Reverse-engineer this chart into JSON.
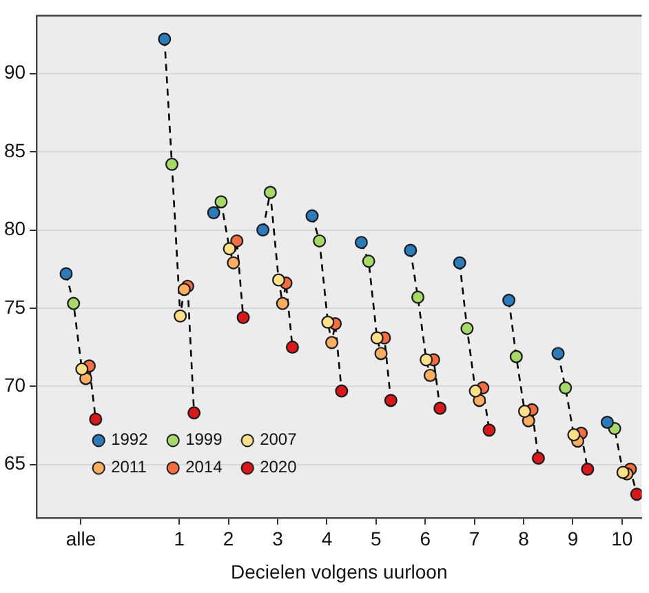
{
  "chart_data": {
    "type": "scatter",
    "xlabel": "Decielen volgens uurloon",
    "xlim": [
      -1.9,
      10.4
    ],
    "xticks": [
      {
        "value": -1,
        "label": "alle"
      },
      1,
      2,
      3,
      4,
      5,
      6,
      7,
      8,
      9,
      10
    ],
    "ylim": [
      61.6,
      93.7
    ],
    "yticks": [
      65,
      70,
      75,
      80,
      85,
      90
    ],
    "grid": "y",
    "legend": "bottom left",
    "marker": "circle",
    "series": [
      {
        "type": "line",
        "color": "#000000",
        "line_style": "dashed",
        "marker": "none",
        "x": [
          -1.3,
          -1.15,
          -0.98,
          -0.9,
          -0.83,
          -0.7
        ],
        "values": [
          77.2,
          75.3,
          71.1,
          70.5,
          71.3,
          67.9
        ]
      },
      {
        "type": "line",
        "color": "#000000",
        "line_style": "dashed",
        "marker": "none",
        "x": [
          0.7,
          0.85,
          1.02,
          1.1,
          1.17,
          1.3
        ],
        "values": [
          92.2,
          84.2,
          74.5,
          76.2,
          76.4,
          68.3
        ]
      },
      {
        "type": "line",
        "color": "#000000",
        "line_style": "dashed",
        "marker": "none",
        "x": [
          1.7,
          1.85,
          2.02,
          2.1,
          2.17,
          2.3
        ],
        "values": [
          81.1,
          81.8,
          78.8,
          77.9,
          79.3,
          74.4
        ]
      },
      {
        "type": "line",
        "color": "#000000",
        "line_style": "dashed",
        "marker": "none",
        "x": [
          2.7,
          2.85,
          3.02,
          3.1,
          3.17,
          3.3
        ],
        "values": [
          80.0,
          82.4,
          76.8,
          75.3,
          76.6,
          72.5
        ]
      },
      {
        "type": "line",
        "color": "#000000",
        "line_style": "dashed",
        "marker": "none",
        "x": [
          3.7,
          3.85,
          4.02,
          4.1,
          4.17,
          4.3
        ],
        "values": [
          80.9,
          79.3,
          74.1,
          72.8,
          74.0,
          69.7
        ]
      },
      {
        "type": "line",
        "color": "#000000",
        "line_style": "dashed",
        "marker": "none",
        "x": [
          4.7,
          4.85,
          5.02,
          5.1,
          5.17,
          5.3
        ],
        "values": [
          79.2,
          78.0,
          73.1,
          72.1,
          73.1,
          69.1
        ]
      },
      {
        "type": "line",
        "color": "#000000",
        "line_style": "dashed",
        "marker": "none",
        "x": [
          5.7,
          5.85,
          6.02,
          6.1,
          6.17,
          6.3
        ],
        "values": [
          78.7,
          75.7,
          71.7,
          70.7,
          71.7,
          68.6
        ]
      },
      {
        "type": "line",
        "color": "#000000",
        "line_style": "dashed",
        "marker": "none",
        "x": [
          6.7,
          6.85,
          7.02,
          7.1,
          7.17,
          7.3
        ],
        "values": [
          77.9,
          73.7,
          69.7,
          69.1,
          69.9,
          67.2
        ]
      },
      {
        "type": "line",
        "color": "#000000",
        "line_style": "dashed",
        "marker": "none",
        "x": [
          7.7,
          7.85,
          8.02,
          8.1,
          8.17,
          8.3
        ],
        "values": [
          75.5,
          71.9,
          68.4,
          67.8,
          68.5,
          65.4
        ]
      },
      {
        "type": "line",
        "color": "#000000",
        "line_style": "dashed",
        "marker": "none",
        "x": [
          8.7,
          8.85,
          9.02,
          9.1,
          9.17,
          9.3
        ],
        "values": [
          72.1,
          69.9,
          66.9,
          66.5,
          67.0,
          64.7
        ]
      },
      {
        "type": "line",
        "color": "#000000",
        "line_style": "dashed",
        "marker": "none",
        "x": [
          9.7,
          9.85,
          10.02,
          10.1,
          10.17,
          10.3
        ],
        "values": [
          67.7,
          67.3,
          64.5,
          64.4,
          64.7,
          63.1
        ]
      },
      {
        "name": "1992",
        "color": "#2b7bba",
        "x": [
          -1.3,
          0.7,
          1.7,
          2.7,
          3.7,
          4.7,
          5.7,
          6.7,
          7.7,
          8.7,
          9.7
        ],
        "values": [
          77.2,
          92.2,
          81.1,
          80.0,
          80.9,
          79.2,
          78.7,
          77.9,
          75.5,
          72.1,
          67.7
        ]
      },
      {
        "name": "1999",
        "color": "#a6d96a",
        "x": [
          -1.15,
          0.85,
          1.85,
          2.85,
          3.85,
          4.85,
          5.85,
          6.85,
          7.85,
          8.85,
          9.85
        ],
        "values": [
          75.3,
          84.2,
          81.8,
          82.4,
          79.3,
          78.0,
          75.7,
          73.7,
          71.9,
          69.9,
          67.3
        ]
      },
      {
        "name": "2007",
        "color": "#fee08b",
        "x": [
          -0.98,
          1.02,
          2.02,
          3.02,
          4.02,
          5.02,
          6.02,
          7.02,
          8.02,
          9.02,
          10.02
        ],
        "values": [
          71.1,
          74.5,
          78.8,
          76.8,
          74.1,
          73.1,
          71.7,
          69.7,
          68.4,
          66.9,
          64.5
        ]
      },
      {
        "name": "2011",
        "color": "#fdae61",
        "x": [
          -0.9,
          1.1,
          2.1,
          3.1,
          4.1,
          5.1,
          6.1,
          7.1,
          8.1,
          9.1,
          10.1
        ],
        "values": [
          70.5,
          76.2,
          77.9,
          75.3,
          72.8,
          72.1,
          70.7,
          69.1,
          67.8,
          66.5,
          64.4
        ]
      },
      {
        "name": "2014",
        "color": "#f46d43",
        "x": [
          -0.83,
          1.17,
          2.17,
          3.17,
          4.17,
          5.17,
          6.17,
          7.17,
          8.17,
          9.17,
          10.17
        ],
        "values": [
          71.3,
          76.4,
          79.3,
          76.6,
          74.0,
          73.1,
          71.7,
          69.9,
          68.5,
          67.0,
          64.7
        ]
      },
      {
        "name": "2020",
        "color": "#d7191c",
        "x": [
          -0.7,
          1.3,
          2.3,
          3.3,
          4.3,
          5.3,
          6.3,
          7.3,
          8.3,
          9.3,
          10.3
        ],
        "values": [
          67.9,
          68.3,
          74.4,
          72.5,
          69.7,
          69.1,
          68.6,
          67.2,
          65.4,
          64.7,
          63.1
        ]
      }
    ]
  }
}
